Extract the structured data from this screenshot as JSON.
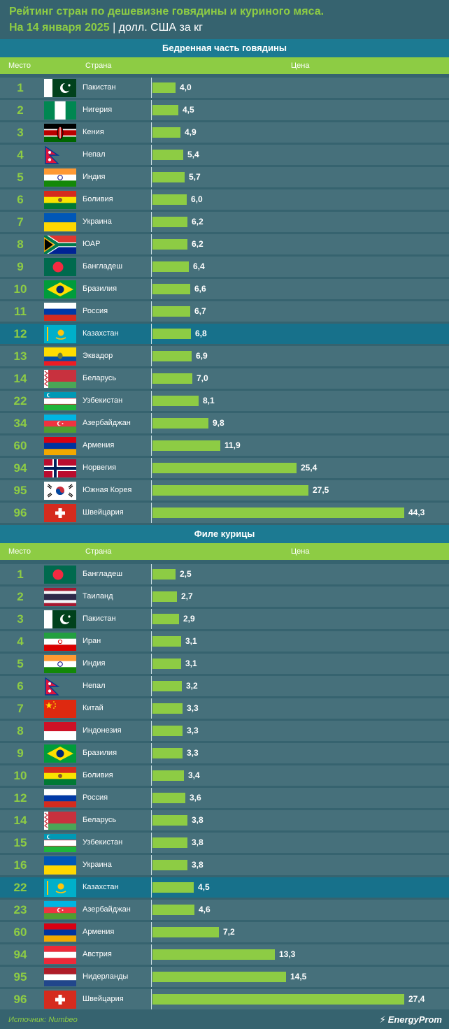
{
  "header": {
    "title": "Рейтинг стран по дешевизне говядины и куриного мяса.",
    "date": "На 14 января 2025",
    "separator": "|",
    "unit": "долл. США за кг"
  },
  "columns": {
    "rank": "Место",
    "country": "Страна",
    "price": "Цена"
  },
  "footer": {
    "source": "Источник: Numbeo",
    "logo": "EnergyProm"
  },
  "colors": {
    "bar": "#8dcc44",
    "row": "#46707b",
    "highlight": "#17718b",
    "section": "#1c7a92"
  },
  "chart_data": [
    {
      "type": "bar",
      "title": "Бедренная часть говядины",
      "orientation": "horizontal",
      "highlight": "Казахстан",
      "rows": [
        {
          "rank": "1",
          "country": "Пакистан",
          "flag": "pakistan",
          "value": 4.0,
          "label": "4,0"
        },
        {
          "rank": "2",
          "country": "Нигерия",
          "flag": "nigeria",
          "value": 4.5,
          "label": "4,5"
        },
        {
          "rank": "3",
          "country": "Кения",
          "flag": "kenya",
          "value": 4.9,
          "label": "4,9"
        },
        {
          "rank": "4",
          "country": "Непал",
          "flag": "nepal",
          "value": 5.4,
          "label": "5,4"
        },
        {
          "rank": "5",
          "country": "Индия",
          "flag": "india",
          "value": 5.7,
          "label": "5,7"
        },
        {
          "rank": "6",
          "country": "Боливия",
          "flag": "bolivia",
          "value": 6.0,
          "label": "6,0"
        },
        {
          "rank": "7",
          "country": "Украина",
          "flag": "ukraine",
          "value": 6.2,
          "label": "6,2"
        },
        {
          "rank": "8",
          "country": "ЮАР",
          "flag": "southafrica",
          "value": 6.2,
          "label": "6,2"
        },
        {
          "rank": "9",
          "country": "Бангладеш",
          "flag": "bangladesh",
          "value": 6.4,
          "label": "6,4"
        },
        {
          "rank": "10",
          "country": "Бразилия",
          "flag": "brazil",
          "value": 6.6,
          "label": "6,6"
        },
        {
          "rank": "11",
          "country": "Россия",
          "flag": "russia",
          "value": 6.7,
          "label": "6,7"
        },
        {
          "rank": "12",
          "country": "Казахстан",
          "flag": "kazakhstan",
          "value": 6.8,
          "label": "6,8"
        },
        {
          "rank": "13",
          "country": "Эквадор",
          "flag": "ecuador",
          "value": 6.9,
          "label": "6,9"
        },
        {
          "rank": "14",
          "country": "Беларусь",
          "flag": "belarus",
          "value": 7.0,
          "label": "7,0"
        },
        {
          "rank": "22",
          "country": "Узбекистан",
          "flag": "uzbekistan",
          "value": 8.1,
          "label": "8,1"
        },
        {
          "rank": "34",
          "country": "Азербайджан",
          "flag": "azerbaijan",
          "value": 9.8,
          "label": "9,8"
        },
        {
          "rank": "60",
          "country": "Армения",
          "flag": "armenia",
          "value": 11.9,
          "label": "11,9"
        },
        {
          "rank": "94",
          "country": "Норвегия",
          "flag": "norway",
          "value": 25.4,
          "label": "25,4"
        },
        {
          "rank": "95",
          "country": "Южная Корея",
          "flag": "southkorea",
          "value": 27.5,
          "label": "27,5"
        },
        {
          "rank": "96",
          "country": "Швейцария",
          "flag": "switzerland",
          "value": 44.3,
          "label": "44,3"
        }
      ]
    },
    {
      "type": "bar",
      "title": "Филе курицы",
      "orientation": "horizontal",
      "highlight": "Казахстан",
      "rows": [
        {
          "rank": "1",
          "country": "Бангладеш",
          "flag": "bangladesh",
          "value": 2.5,
          "label": "2,5"
        },
        {
          "rank": "2",
          "country": "Таиланд",
          "flag": "thailand",
          "value": 2.7,
          "label": "2,7"
        },
        {
          "rank": "3",
          "country": "Пакистан",
          "flag": "pakistan",
          "value": 2.9,
          "label": "2,9"
        },
        {
          "rank": "4",
          "country": "Иран",
          "flag": "iran",
          "value": 3.1,
          "label": "3,1"
        },
        {
          "rank": "5",
          "country": "Индия",
          "flag": "india",
          "value": 3.1,
          "label": "3,1"
        },
        {
          "rank": "6",
          "country": "Непал",
          "flag": "nepal",
          "value": 3.2,
          "label": "3,2"
        },
        {
          "rank": "7",
          "country": "Китай",
          "flag": "china",
          "value": 3.3,
          "label": "3,3"
        },
        {
          "rank": "8",
          "country": "Индонезия",
          "flag": "indonesia",
          "value": 3.3,
          "label": "3,3"
        },
        {
          "rank": "9",
          "country": "Бразилия",
          "flag": "brazil",
          "value": 3.3,
          "label": "3,3"
        },
        {
          "rank": "10",
          "country": "Боливия",
          "flag": "bolivia",
          "value": 3.4,
          "label": "3,4"
        },
        {
          "rank": "12",
          "country": "Россия",
          "flag": "russia",
          "value": 3.6,
          "label": "3,6"
        },
        {
          "rank": "14",
          "country": "Беларусь",
          "flag": "belarus",
          "value": 3.8,
          "label": "3,8"
        },
        {
          "rank": "15",
          "country": "Узбекистан",
          "flag": "uzbekistan",
          "value": 3.8,
          "label": "3,8"
        },
        {
          "rank": "16",
          "country": "Украина",
          "flag": "ukraine",
          "value": 3.8,
          "label": "3,8"
        },
        {
          "rank": "22",
          "country": "Казахстан",
          "flag": "kazakhstan",
          "value": 4.5,
          "label": "4,5"
        },
        {
          "rank": "23",
          "country": "Азербайджан",
          "flag": "azerbaijan",
          "value": 4.6,
          "label": "4,6"
        },
        {
          "rank": "60",
          "country": "Армения",
          "flag": "armenia",
          "value": 7.2,
          "label": "7,2"
        },
        {
          "rank": "94",
          "country": "Австрия",
          "flag": "austria",
          "value": 13.3,
          "label": "13,3"
        },
        {
          "rank": "95",
          "country": "Нидерланды",
          "flag": "netherlands",
          "value": 14.5,
          "label": "14,5"
        },
        {
          "rank": "96",
          "country": "Швейцария",
          "flag": "switzerland",
          "value": 27.4,
          "label": "27,4"
        }
      ]
    }
  ]
}
